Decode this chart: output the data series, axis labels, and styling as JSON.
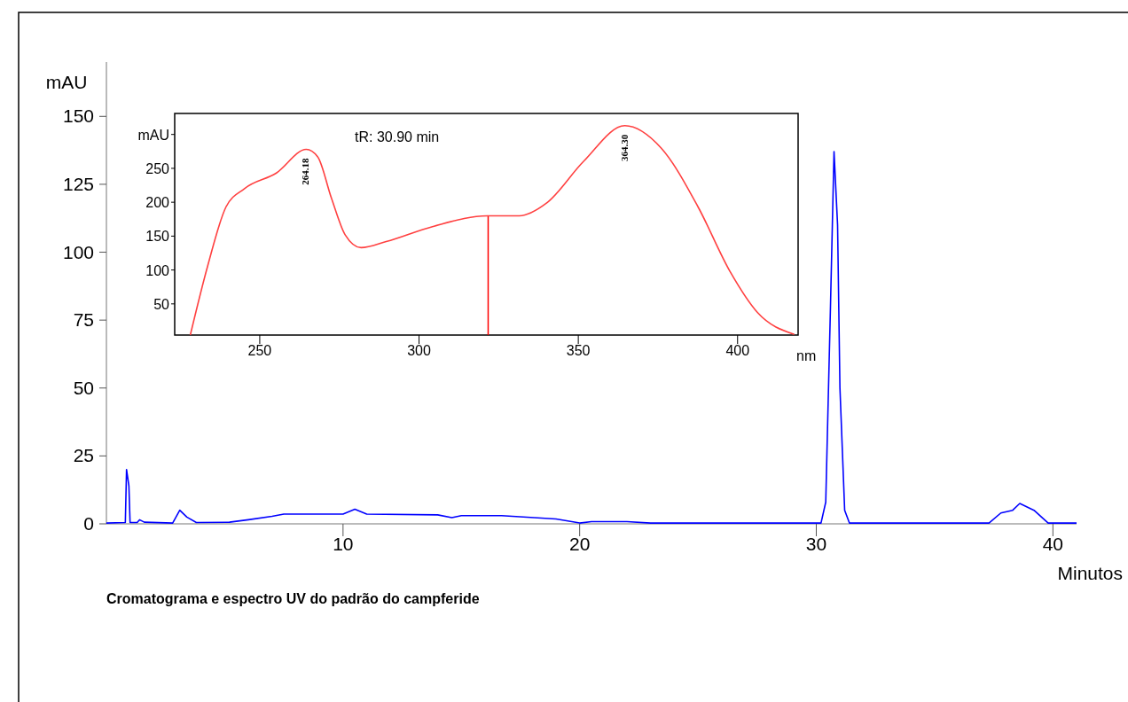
{
  "chart_data": [
    {
      "type": "line",
      "title": "Cromatograma e espectro UV do padrão do campferide",
      "xlabel": "Minutos",
      "ylabel": "mAU",
      "xlim": [
        0,
        41
      ],
      "ylim": [
        0,
        170
      ],
      "xticks": [
        10,
        20,
        30,
        40
      ],
      "yticks": [
        0,
        25,
        50,
        75,
        100,
        125,
        150
      ],
      "marker": "none",
      "line_style": "solid",
      "series": [
        {
          "color": "#0000ff",
          "x": [
            0,
            0.8,
            0.85,
            0.95,
            1.0,
            1.3,
            1.4,
            1.6,
            2.8,
            3.1,
            3.4,
            3.8,
            5.2,
            6,
            7,
            7.5,
            10,
            10.5,
            11,
            14,
            14.6,
            15,
            16.7,
            19,
            20,
            20.5,
            22,
            23,
            30.2,
            30.4,
            30.6,
            30.75,
            30.9,
            31.0,
            31.2,
            31.4,
            37.3,
            37.8,
            38.3,
            38.6,
            39.2,
            39.8,
            41
          ],
          "values": [
            0.3,
            0.5,
            20,
            14,
            0.5,
            0.5,
            1.5,
            0.6,
            0.3,
            5,
            2.5,
            0.5,
            0.6,
            1.5,
            2.8,
            3.6,
            3.6,
            5.4,
            3.6,
            3.3,
            2.3,
            3,
            3,
            1.8,
            0.3,
            0.8,
            0.8,
            0.3,
            0.3,
            8,
            80,
            137,
            110,
            50,
            5,
            0.3,
            0.3,
            4,
            5,
            7.5,
            5,
            0.3,
            0.3
          ]
        }
      ]
    },
    {
      "type": "line",
      "xlabel": "nm",
      "annotations": [
        "tR: 30.90 min",
        {
          "text": "264.18",
          "x": 264.18,
          "y": 278
        },
        {
          "text": "364.30",
          "x": 364.3,
          "y": 313
        }
      ],
      "xlim": [
        223.3,
        419
      ],
      "ylim": [
        4,
        331
      ],
      "xticks": [
        250,
        300,
        350,
        400
      ],
      "yticks": [
        50,
        100,
        150,
        200,
        250,
        {
          "value": 300,
          "label": "mAU"
        }
      ],
      "marker": "none",
      "line_style": "solid",
      "ref_lines": [
        {
          "axis": "x",
          "value": 321.7,
          "color": "#ff0000"
        }
      ],
      "series": [
        {
          "color": "#ff4040",
          "x": [
            228.2,
            233.6,
            239.4,
            245.2,
            255.2,
            264.6,
            268.2,
            272.5,
            276.8,
            281.8,
            289.7,
            304.2,
            321.4,
            331.5,
            340.1,
            351.6,
            364.6,
            376,
            387.6,
            397.6,
            406.3,
            417.8
          ],
          "values": [
            4,
            105,
            193,
            220,
            243,
            278,
            267,
            206,
            152,
            133,
            142,
            164,
            180,
            180,
            199,
            260,
            313,
            280,
            193,
            98,
            37,
            5
          ]
        }
      ]
    }
  ]
}
